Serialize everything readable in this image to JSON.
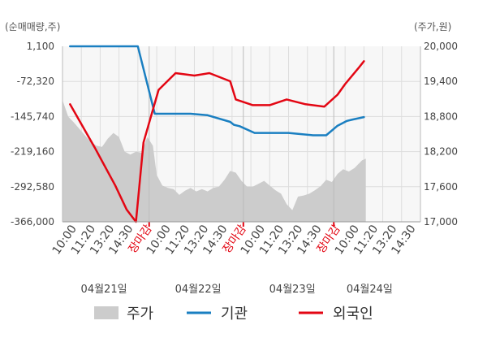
{
  "chart_data": {
    "type": "line",
    "left_unit": "(순매매량,주)",
    "right_unit": "(주가,원)",
    "left_axis": {
      "ticks": [
        "1,100",
        "-72,320",
        "-145,740",
        "-219,160",
        "-292,580",
        "-366,000"
      ],
      "ylim": [
        -366000,
        1100
      ]
    },
    "right_axis": {
      "ticks": [
        "20,000",
        "19,400",
        "18,800",
        "18,200",
        "17,600",
        "17,000"
      ],
      "ylim": [
        17000,
        20000
      ]
    },
    "x_tick_labels": [
      "10:00",
      "11:20",
      "13:20",
      "14:30",
      "장마감",
      "10:00",
      "11:20",
      "13:20",
      "14:30",
      "장마감",
      "10:00",
      "11:20",
      "13:20",
      "14:30",
      "장마감",
      "10:00",
      "11:20",
      "13:20",
      "14:30"
    ],
    "date_labels": [
      "04월21일",
      "04월22일",
      "04월23일",
      "04월24일"
    ],
    "legend": [
      "주가",
      "기관",
      "외국인"
    ],
    "colors": {
      "price": "#cccccc",
      "institution": "#1a7fc1",
      "foreign": "#e30613",
      "grid": "#dddddd",
      "marker": "#e30613"
    },
    "series": [
      {
        "name": "기관",
        "axis": "left",
        "x": [
          0.4,
          4.0,
          4.9,
          6.8,
          7.7,
          8.9,
          9.1,
          9.4,
          10.2,
          11.1,
          12.0,
          13.3,
          14.0,
          14.6,
          15.1,
          15.4,
          16.0
        ],
        "y": [
          1100,
          1100,
          -140000,
          -140000,
          -143000,
          -157000,
          -163000,
          -166000,
          -180000,
          -180000,
          -180000,
          -185000,
          -185000,
          -165000,
          -155000,
          -152000,
          -147000
        ]
      },
      {
        "name": "외국인",
        "axis": "left",
        "x": [
          0.4,
          1.7,
          2.8,
          3.4,
          3.9,
          4.3,
          5.1,
          6.0,
          7.0,
          7.8,
          8.9,
          9.2,
          10.1,
          11.0,
          11.9,
          12.9,
          13.9,
          14.6,
          15.0,
          15.7,
          16.0
        ],
        "y": [
          -120000,
          -210000,
          -290000,
          -340000,
          -366000,
          -200000,
          -90000,
          -55000,
          -60000,
          -55000,
          -72000,
          -110000,
          -122000,
          -122000,
          -110000,
          -120000,
          -125000,
          -100000,
          -78000,
          -45000,
          -30000
        ]
      },
      {
        "name": "주가",
        "axis": "right",
        "type": "area",
        "x": [
          0.0,
          0.3,
          0.6,
          1.0,
          1.4,
          1.8,
          2.1,
          2.4,
          2.7,
          3.0,
          3.3,
          3.6,
          3.9,
          4.2,
          4.5,
          4.8,
          5.0,
          5.3,
          5.6,
          5.9,
          6.2,
          6.5,
          6.8,
          7.1,
          7.4,
          7.7,
          8.0,
          8.3,
          8.6,
          8.9,
          9.2,
          9.5,
          9.8,
          10.1,
          10.4,
          10.7,
          11.0,
          11.3,
          11.6,
          11.9,
          12.2,
          12.5,
          12.8,
          13.1,
          13.4,
          13.7,
          14.0,
          14.3,
          14.6,
          14.9,
          15.2,
          15.5,
          15.9,
          16.1
        ],
        "y": [
          19080,
          18800,
          18700,
          18550,
          18400,
          18300,
          18280,
          18420,
          18520,
          18450,
          18200,
          18150,
          18200,
          18180,
          18450,
          18300,
          17800,
          17620,
          17580,
          17560,
          17460,
          17530,
          17580,
          17520,
          17560,
          17520,
          17580,
          17600,
          17720,
          17870,
          17840,
          17700,
          17600,
          17600,
          17650,
          17700,
          17620,
          17540,
          17480,
          17300,
          17200,
          17430,
          17450,
          17480,
          17540,
          17610,
          17720,
          17680,
          17820,
          17900,
          17860,
          17920,
          18050,
          18080
        ]
      }
    ],
    "xlim": [
      0,
      19
    ],
    "session_breaks": [
      4.6,
      9.6,
      14.4
    ]
  }
}
